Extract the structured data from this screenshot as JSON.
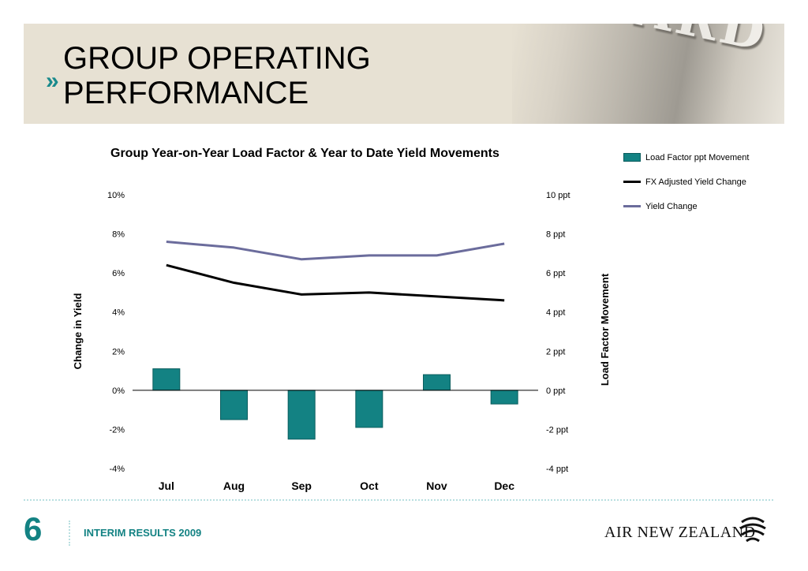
{
  "header": {
    "title_line1": "GROUP OPERATING",
    "title_line2": "PERFORMANCE",
    "chevron": "»",
    "background_photo_text": "BOARD ON WELCOME"
  },
  "chart_data": {
    "type": "bar",
    "title": "Group Year-on-Year Load Factor & Year to Date Yield Movements",
    "categories": [
      "Jul",
      "Aug",
      "Sep",
      "Oct",
      "Nov",
      "Dec"
    ],
    "y_left": {
      "label": "Change in Yield",
      "ticks": [
        "10%",
        "8%",
        "6%",
        "4%",
        "2%",
        "0%",
        "-2%",
        "-4%"
      ],
      "range": [
        -4,
        10
      ]
    },
    "y_right": {
      "label": "Load Factor Movement",
      "ticks": [
        "10 ppt",
        "8 ppt",
        "6 ppt",
        "4 ppt",
        "2 ppt",
        "0 ppt",
        "-2 ppt",
        "-4 ppt"
      ],
      "range": [
        -4,
        10
      ]
    },
    "series": [
      {
        "name": "Load Factor ppt Movement",
        "kind": "bar",
        "axis": "right",
        "color": "#138283",
        "values": [
          1.1,
          -1.5,
          -2.5,
          -1.9,
          0.8,
          -0.7
        ]
      },
      {
        "name": "FX Adjusted Yield Change",
        "kind": "line",
        "axis": "left",
        "color": "#000000",
        "values": [
          6.4,
          5.5,
          4.9,
          5.0,
          4.8,
          4.6
        ]
      },
      {
        "name": "Yield Change",
        "kind": "line",
        "axis": "left",
        "color": "#6b6c9c",
        "values": [
          7.6,
          7.3,
          6.7,
          6.9,
          6.9,
          7.5
        ]
      }
    ],
    "legend_position": "right",
    "grid": false
  },
  "footer": {
    "page_number": "6",
    "text": "INTERIM RESULTS 2009",
    "logo": "AIR NEW ZEALAND"
  }
}
